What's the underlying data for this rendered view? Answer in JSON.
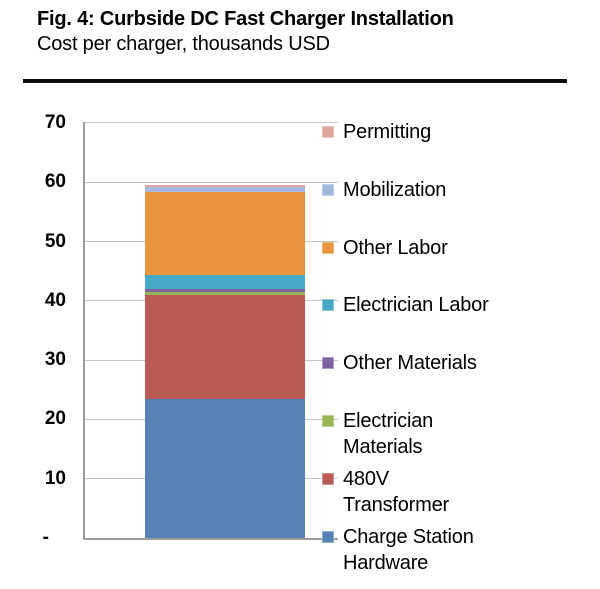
{
  "figure": {
    "title": "Fig. 4: Curbside DC Fast Charger Installation",
    "subtitle": "Cost per charger, thousands USD"
  },
  "chart_data": {
    "type": "bar",
    "stacked": true,
    "title": "Fig. 4: Curbside DC Fast Charger Installation",
    "subtitle": "Cost per charger, thousands USD",
    "unit": "thousands USD",
    "categories": [
      "Cost per charger"
    ],
    "series": [
      {
        "name": "Charge Station Hardware",
        "label": "Charge Station\nHardware",
        "value": 23.4,
        "color": "#5583B6"
      },
      {
        "name": "480V Transformer",
        "label": "480V\nTransformer",
        "value": 17.6,
        "color": "#B95B54"
      },
      {
        "name": "Electrician Materials",
        "label": "Electrician\nMaterials",
        "value": 0.5,
        "color": "#98B556"
      },
      {
        "name": "Other Materials",
        "label": "Other Materials",
        "value": 0.5,
        "color": "#7F63A1"
      },
      {
        "name": "Electrician Labor",
        "label": "Electrician Labor",
        "value": 2.4,
        "color": "#46AAC4"
      },
      {
        "name": "Other Labor",
        "label": "Other Labor",
        "value": 13.9,
        "color": "#E9953F"
      },
      {
        "name": "Mobilization",
        "label": "Mobilization",
        "value": 0.9,
        "color": "#A3B8DC"
      },
      {
        "name": "Permitting",
        "label": "Permitting",
        "value": 0.3,
        "color": "#DFA3A0"
      }
    ],
    "total": 59.5,
    "ylim": [
      0,
      70
    ],
    "yticks": [
      {
        "value": 0,
        "label": "-"
      },
      {
        "value": 10,
        "label": "10"
      },
      {
        "value": 20,
        "label": "20"
      },
      {
        "value": 30,
        "label": "30"
      },
      {
        "value": 40,
        "label": "40"
      },
      {
        "value": 50,
        "label": "50"
      },
      {
        "value": 60,
        "label": "60"
      },
      {
        "value": 70,
        "label": "70"
      }
    ],
    "grid": "horizontal",
    "legend_position": "right",
    "legend_order": "top-of-stack-first",
    "colors": {
      "gridline": "#C6C6C6",
      "axis": "#9B9B9B",
      "title_rule": "#0D0D0D"
    }
  }
}
